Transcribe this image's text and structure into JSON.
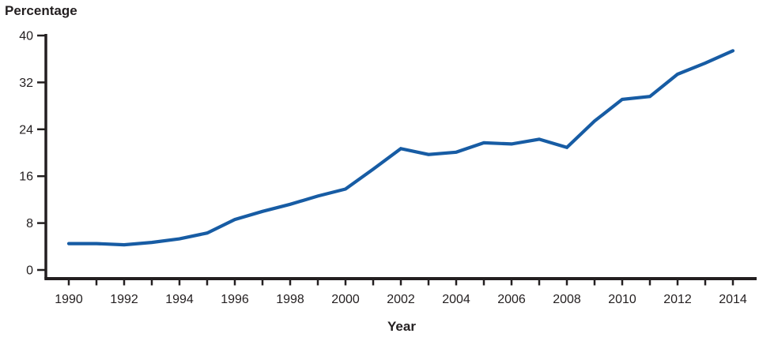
{
  "chart_data": {
    "type": "line",
    "title": "",
    "ylabel": "Percentage",
    "xlabel": "Year",
    "x": [
      1990,
      1991,
      1992,
      1993,
      1994,
      1995,
      1996,
      1997,
      1998,
      1999,
      2000,
      2001,
      2002,
      2003,
      2004,
      2005,
      2006,
      2007,
      2008,
      2009,
      2010,
      2011,
      2012,
      2013,
      2014
    ],
    "values": [
      4.5,
      4.5,
      4.3,
      4.7,
      5.3,
      6.3,
      8.6,
      10.0,
      11.2,
      12.6,
      13.8,
      17.2,
      20.7,
      19.7,
      20.1,
      21.7,
      21.5,
      22.3,
      20.9,
      25.4,
      29.1,
      29.6,
      33.4,
      35.3,
      37.4
    ],
    "ylim": [
      0,
      40
    ],
    "yticks": [
      0,
      8,
      16,
      24,
      32,
      40
    ],
    "y_tick_labels": [
      "0",
      "8",
      "16",
      "24",
      "32",
      "40"
    ],
    "x_tick_labels": [
      "1990",
      "1992",
      "1994",
      "1996",
      "1998",
      "2000",
      "2002",
      "2004",
      "2006",
      "2008",
      "2010",
      "2012",
      "2014"
    ],
    "x_label_every": 2,
    "grid": false,
    "legend": "none",
    "line_color": "#175ca4",
    "axis_color": "#231f20"
  }
}
